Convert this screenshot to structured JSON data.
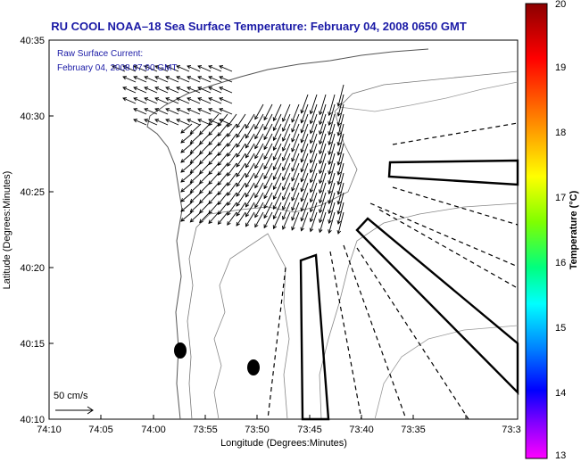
{
  "title": "RU COOL  NOAA–18  Sea Surface Temperature:  February 04, 2008 0650 GMT",
  "current_label": {
    "line1": "Raw Surface Current:",
    "line2": "February 04, 2008 07:00 GMT"
  },
  "axes": {
    "xlabel": "Longitude (Degrees:Minutes)",
    "ylabel": "Latitude (Degrees:Minutes)",
    "x_ticks": [
      "74:10",
      "74:05",
      "74:00",
      "73:55",
      "73:50",
      "73:45",
      "73:40",
      "73:35",
      "73:3"
    ],
    "y_ticks": [
      "40:35",
      "40:30",
      "40:25",
      "40:20",
      "40:15",
      "40:10"
    ]
  },
  "scale_label": "50 cm/s",
  "colorbar": {
    "label": "Temperature (°C)",
    "ticks": [
      "20",
      "19",
      "18",
      "17",
      "16",
      "15",
      "14",
      "13"
    ],
    "colors": [
      "#8b0000",
      "#ff0000",
      "#ff7f00",
      "#ffff00",
      "#7fff00",
      "#00ff7f",
      "#00ffff",
      "#007fff",
      "#0000ff",
      "#7f00ff",
      "#ff00ff"
    ]
  }
}
